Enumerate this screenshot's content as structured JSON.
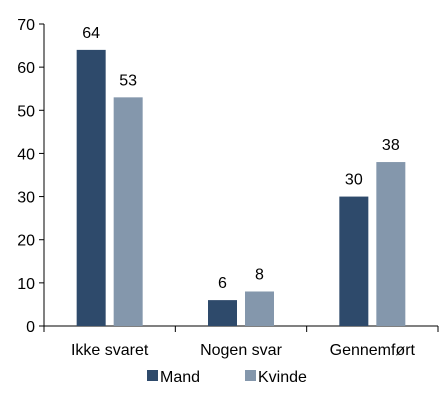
{
  "chart_data": {
    "type": "bar",
    "title": "",
    "xlabel": "",
    "ylabel": "",
    "categories": [
      "Ikke svaret",
      "Nogen svar",
      "Gennemført"
    ],
    "series": [
      {
        "name": "Mand",
        "color": "#2e4a6b",
        "values": [
          64,
          6,
          30
        ]
      },
      {
        "name": "Kvinde",
        "color": "#8497ac",
        "values": [
          53,
          8,
          38
        ]
      }
    ],
    "ylim": [
      0,
      70
    ],
    "yticks": [
      0,
      10,
      20,
      30,
      40,
      50,
      60,
      70
    ],
    "grid": false,
    "legend_position": "bottom-center",
    "data_labels": true
  }
}
